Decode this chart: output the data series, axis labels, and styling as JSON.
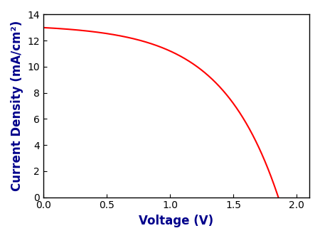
{
  "xlabel": "Voltage (V)",
  "ylabel": "Current Density (mA/cm²)",
  "line_color": "#ff0000",
  "line_width": 1.5,
  "xlim": [
    0,
    2.1
  ],
  "ylim": [
    0,
    14
  ],
  "xticks": [
    0.0,
    0.5,
    1.0,
    1.5,
    2.0
  ],
  "yticks": [
    0,
    2,
    4,
    6,
    8,
    10,
    12,
    14
  ],
  "label_color": "#00008B",
  "label_fontsize": 12,
  "tick_fontsize": 10,
  "Jsc": 13.0,
  "Voc": 1.855,
  "n_vt": 0.45,
  "Rsh": 25.0,
  "background_color": "#ffffff"
}
